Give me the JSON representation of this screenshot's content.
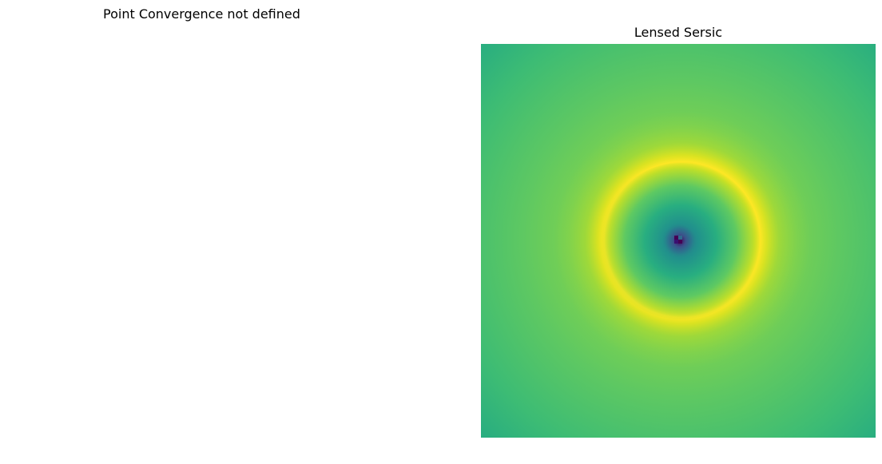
{
  "panels": [
    {
      "title": "Point Convergence not defined",
      "content": "empty"
    },
    {
      "title": "Lensed Sersic",
      "content": "image",
      "colormap": "viridis",
      "features": [
        "einstein-ring",
        "central-dark-core"
      ],
      "colors": {
        "ring": "#fde725",
        "background_edge": "#2fb47c",
        "background_mid": "#6ccd5a",
        "core": "#440154",
        "core_halo": "#21918c"
      }
    }
  ]
}
